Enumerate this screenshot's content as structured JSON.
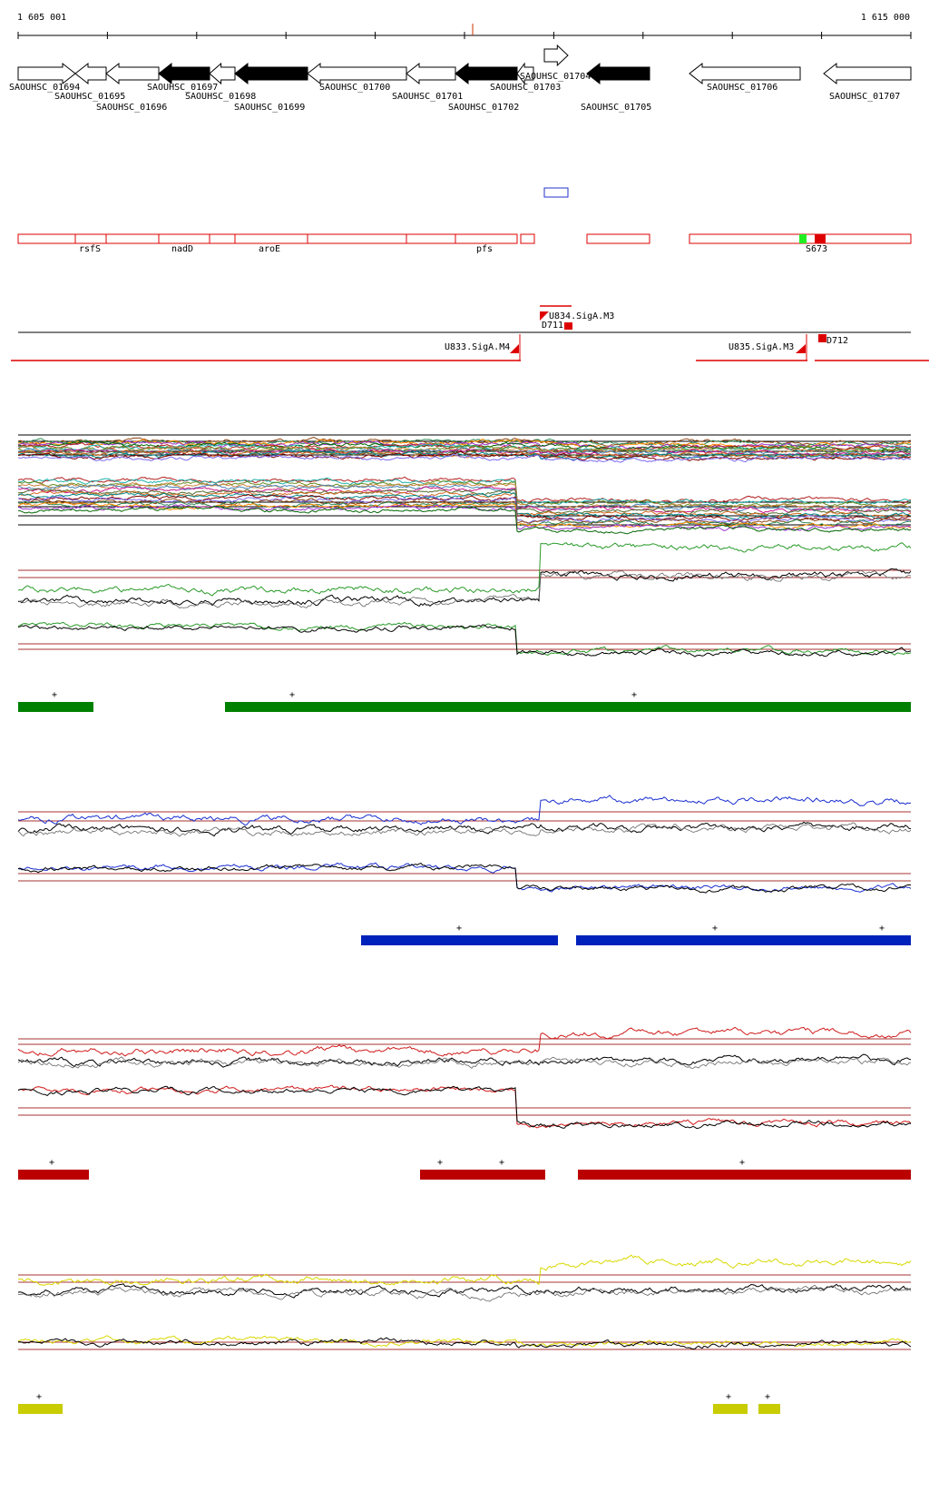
{
  "coordinates": {
    "start": "1 605 001",
    "end": "1 615 000"
  },
  "genes": [
    {
      "id": "SAOUHSC_01694",
      "strand": "+",
      "fill": "white"
    },
    {
      "id": "SAOUHSC_01695",
      "strand": "-",
      "fill": "white"
    },
    {
      "id": "SAOUHSC_01696",
      "strand": "-",
      "fill": "white"
    },
    {
      "id": "SAOUHSC_01697",
      "strand": "-",
      "fill": "black"
    },
    {
      "id": "SAOUHSC_01698",
      "strand": "-",
      "fill": "white"
    },
    {
      "id": "SAOUHSC_01699",
      "strand": "-",
      "fill": "black"
    },
    {
      "id": "SAOUHSC_01700",
      "strand": "-",
      "fill": "white"
    },
    {
      "id": "SAOUHSC_01701",
      "strand": "-",
      "fill": "white"
    },
    {
      "id": "SAOUHSC_01702",
      "strand": "-",
      "fill": "black"
    },
    {
      "id": "SAOUHSC_01703",
      "strand": "-",
      "fill": "white"
    },
    {
      "id": "SAOUHSC_01704",
      "strand": "+",
      "fill": "white"
    },
    {
      "id": "SAOUHSC_01705",
      "strand": "-",
      "fill": "black"
    },
    {
      "id": "SAOUHSC_01706",
      "strand": "-",
      "fill": "white"
    },
    {
      "id": "SAOUHSC_01707",
      "strand": "-",
      "fill": "white"
    }
  ],
  "gene_names": [
    "rsfS",
    "nadD",
    "aroE",
    "pfs",
    "S673"
  ],
  "segments": [
    "U834.SigA.M3",
    "D711",
    "U833.SigA.M4",
    "U835.SigA.M3",
    "D712"
  ],
  "tracks": [
    {
      "name": "green",
      "color": "#008000",
      "line": "#2a9a2a",
      "marker": "+"
    },
    {
      "name": "blue",
      "color": "#0022bb",
      "line": "#1a2ed0",
      "marker": "+"
    },
    {
      "name": "red",
      "color": "#bb0000",
      "line": "#d01a1a",
      "marker": "+"
    },
    {
      "name": "yellow",
      "color": "#c8cc00",
      "line": "#d8d800",
      "marker": "+"
    }
  ],
  "colors": {
    "outline_red": "#dd0000",
    "threshold": "#aa3333",
    "blue_box": "#2233cc",
    "green_mark": "#22ee22"
  }
}
